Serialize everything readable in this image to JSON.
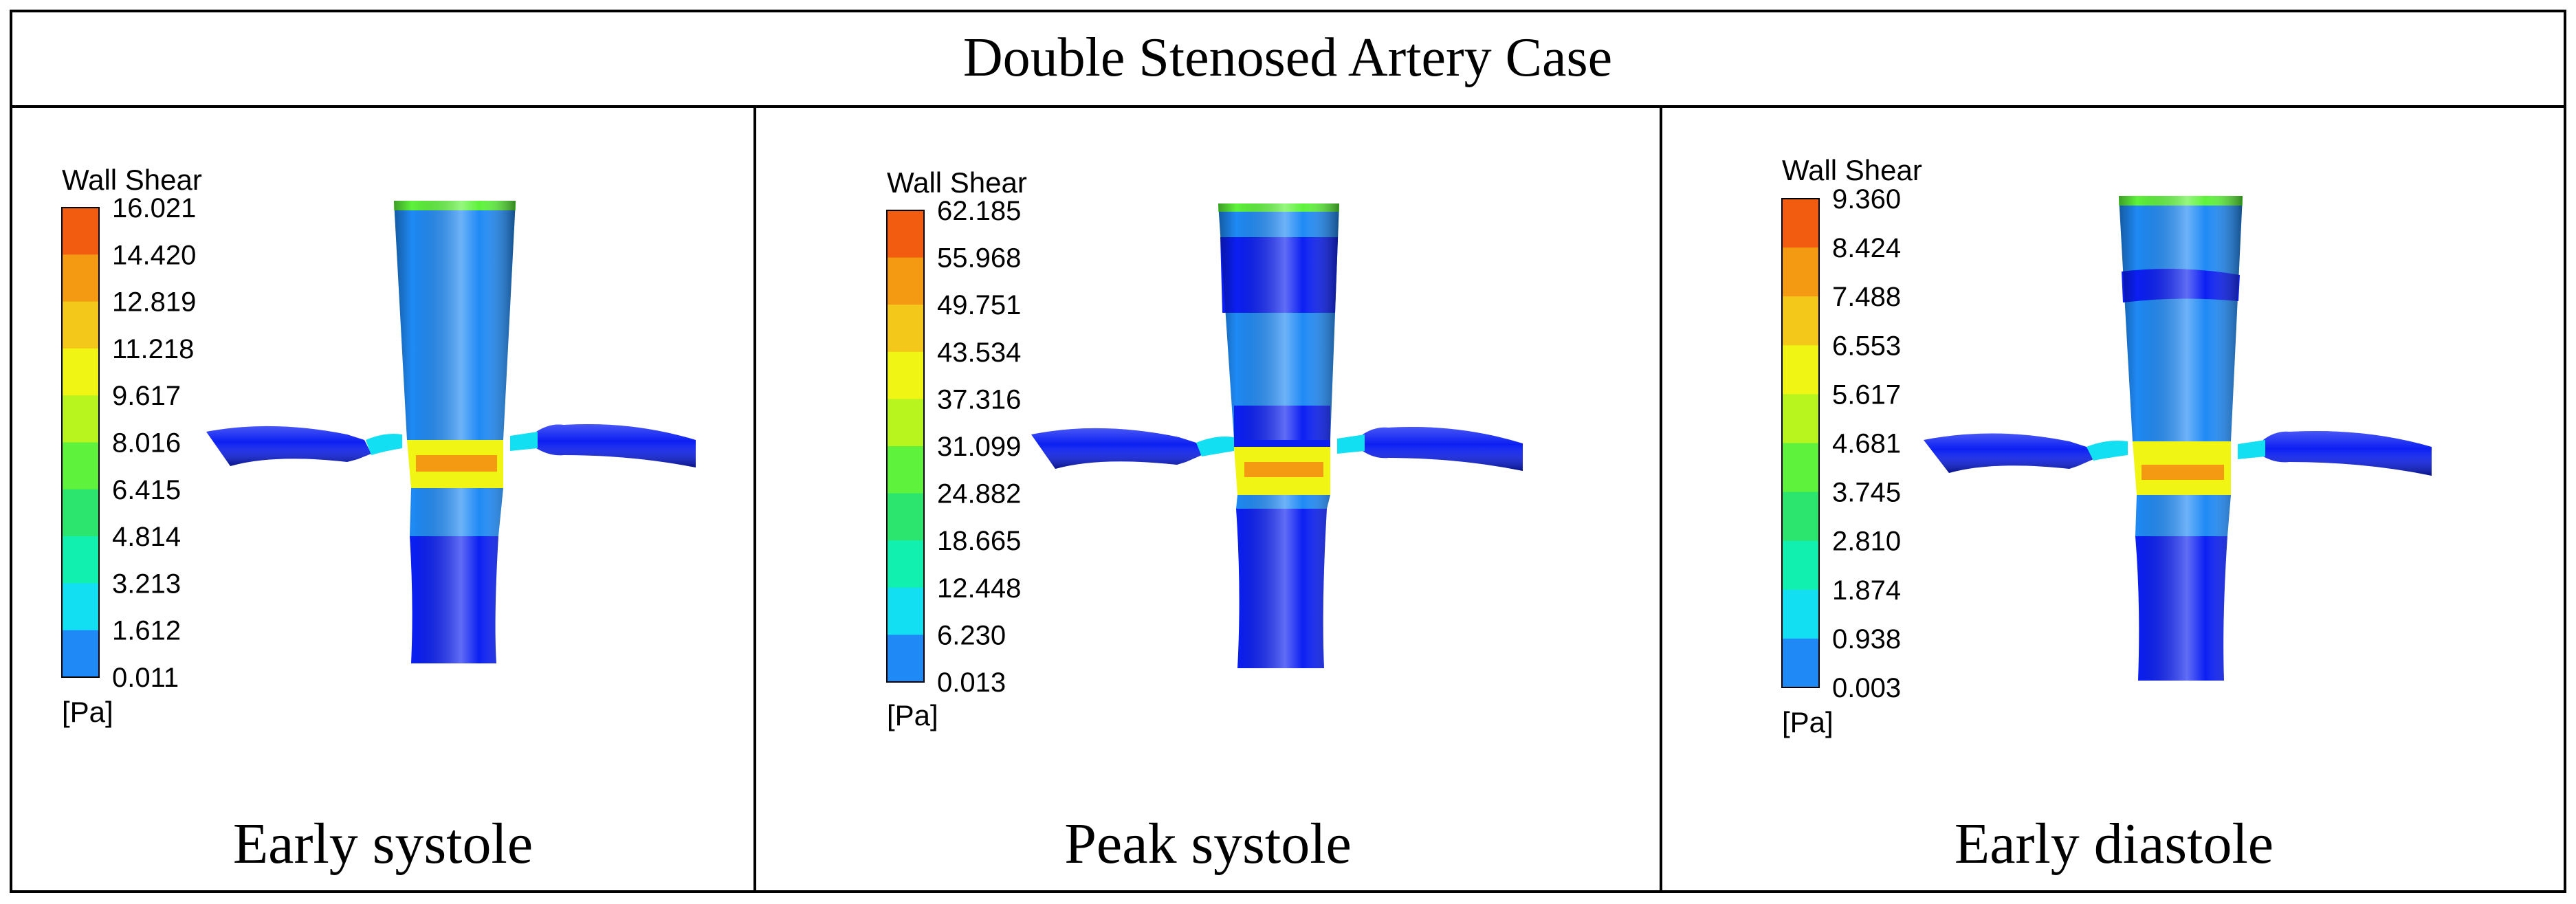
{
  "title": "Double Stenosed Artery Case",
  "legend_title": "Wall Shear",
  "unit": "[Pa]",
  "colors": {
    "scale": [
      "#0b1ff2",
      "#1f8af5",
      "#12dff2",
      "#12f0b0",
      "#2be56e",
      "#5ef23c",
      "#b8f51f",
      "#f0f514",
      "#f4c81a",
      "#f49a12",
      "#f25c10"
    ],
    "border": "#000000",
    "background": "#ffffff"
  },
  "panels": [
    {
      "caption": "Early systole",
      "ticks": [
        "16.021",
        "14.420",
        "12.819",
        "11.218",
        "9.617",
        "8.016",
        "6.415",
        "4.814",
        "3.213",
        "1.612",
        "0.011"
      ]
    },
    {
      "caption": "Peak systole",
      "ticks": [
        "62.185",
        "55.968",
        "49.751",
        "43.534",
        "37.316",
        "31.099",
        "24.882",
        "18.665",
        "12.448",
        "6.230",
        "0.013"
      ]
    },
    {
      "caption": "Early diastole",
      "ticks": [
        "9.360",
        "8.424",
        "7.488",
        "6.553",
        "5.617",
        "4.681",
        "3.745",
        "2.810",
        "1.874",
        "0.938",
        "0.003"
      ]
    }
  ]
}
